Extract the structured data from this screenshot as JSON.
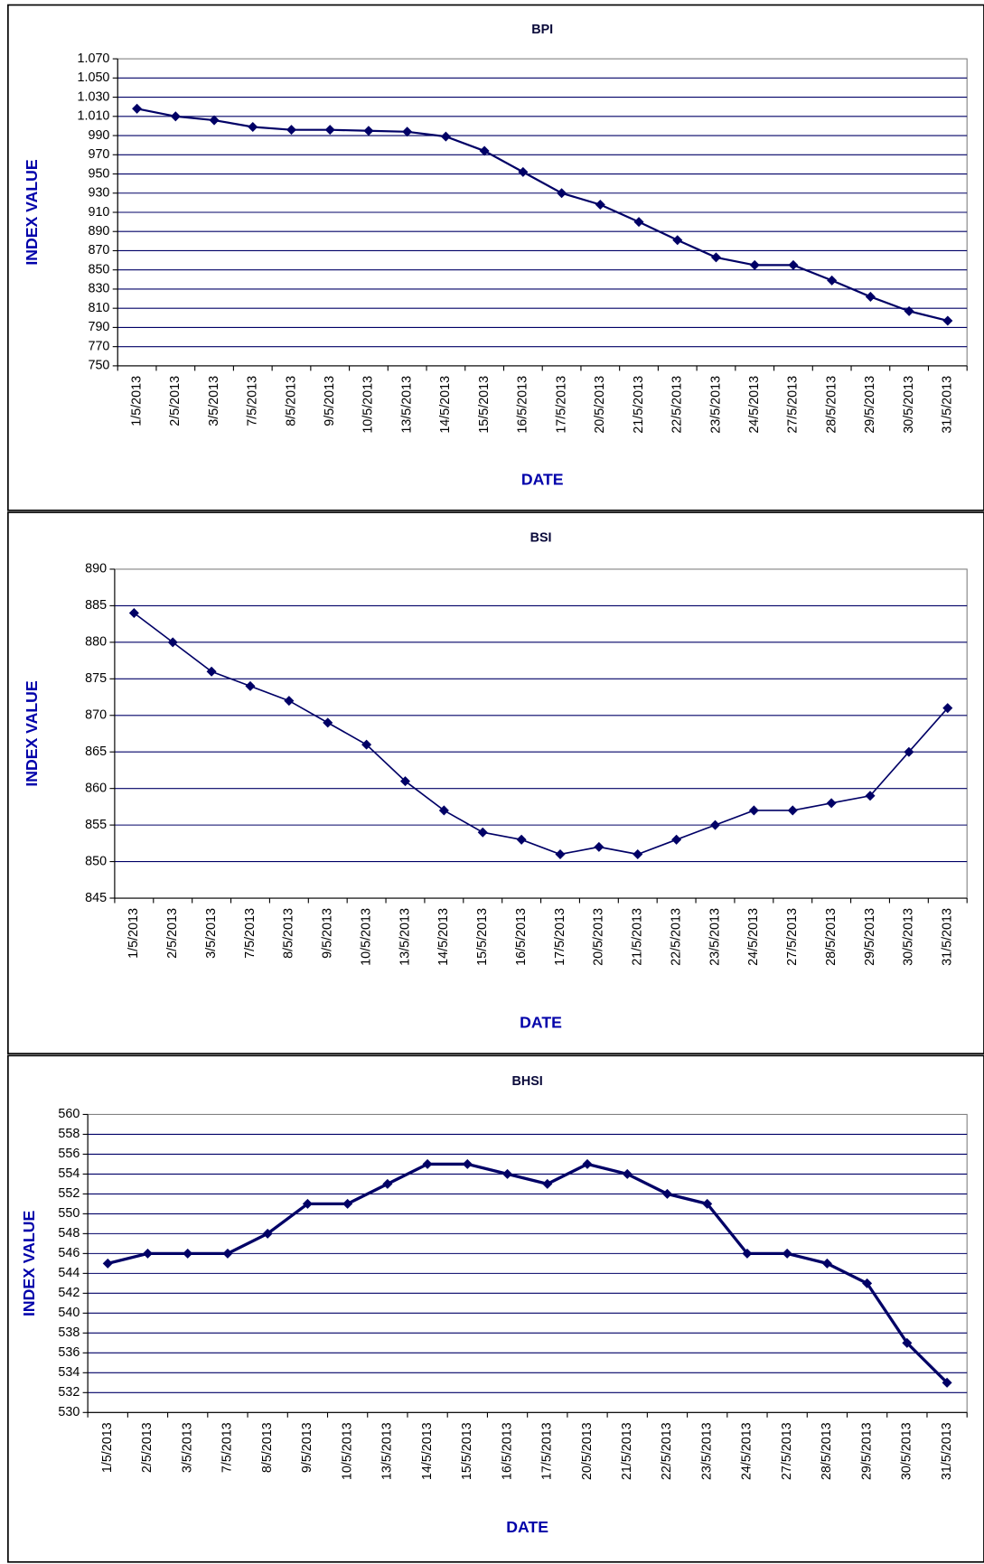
{
  "chart_data": [
    {
      "type": "line",
      "title": "BPI",
      "x_label": "DATE",
      "y_label": "INDEX VALUE",
      "categories": [
        "1/5/2013",
        "2/5/2013",
        "3/5/2013",
        "7/5/2013",
        "8/5/2013",
        "9/5/2013",
        "10/5/2013",
        "13/5/2013",
        "14/5/2013",
        "15/5/2013",
        "16/5/2013",
        "17/5/2013",
        "20/5/2013",
        "21/5/2013",
        "22/5/2013",
        "23/5/2013",
        "24/5/2013",
        "27/5/2013",
        "28/5/2013",
        "29/5/2013",
        "30/5/2013",
        "31/5/2013"
      ],
      "values": [
        1018,
        1010,
        1006,
        999,
        996,
        996,
        995,
        994,
        989,
        974,
        952,
        930,
        918,
        900,
        881,
        863,
        855,
        855,
        839,
        822,
        807,
        797
      ],
      "color": "#000066",
      "ylim": [
        750,
        1070
      ],
      "yticks": [
        750,
        770,
        790,
        810,
        830,
        850,
        870,
        890,
        910,
        930,
        950,
        970,
        990,
        {
          "value": 1010,
          "label": "1.010"
        },
        {
          "value": 1030,
          "label": "1.030"
        },
        {
          "value": 1050,
          "label": "1.050"
        },
        {
          "value": 1070,
          "label": "1.070"
        }
      ],
      "grid": true
    },
    {
      "type": "line",
      "title": "BSI",
      "x_label": "DATE",
      "y_label": "INDEX VALUE",
      "categories": [
        "1/5/2013",
        "2/5/2013",
        "3/5/2013",
        "7/5/2013",
        "8/5/2013",
        "9/5/2013",
        "10/5/2013",
        "13/5/2013",
        "14/5/2013",
        "15/5/2013",
        "16/5/2013",
        "17/5/2013",
        "20/5/2013",
        "21/5/2013",
        "22/5/2013",
        "23/5/2013",
        "24/5/2013",
        "27/5/2013",
        "28/5/2013",
        "29/5/2013",
        "30/5/2013",
        "31/5/2013"
      ],
      "values": [
        884,
        880,
        876,
        874,
        872,
        869,
        866,
        861,
        857,
        854,
        853,
        851,
        852,
        851,
        853,
        855,
        857,
        857,
        858,
        859,
        865,
        871
      ],
      "color": "#000066",
      "ylim": [
        845,
        890
      ],
      "yticks": [
        845,
        850,
        855,
        860,
        865,
        870,
        875,
        880,
        885,
        890
      ],
      "grid": true
    },
    {
      "type": "line",
      "title": "BHSI",
      "x_label": "DATE",
      "y_label": "INDEX VALUE",
      "categories": [
        "1/5/2013",
        "2/5/2013",
        "3/5/2013",
        "7/5/2013",
        "8/5/2013",
        "9/5/2013",
        "10/5/2013",
        "13/5/2013",
        "14/5/2013",
        "15/5/2013",
        "16/5/2013",
        "17/5/2013",
        "20/5/2013",
        "21/5/2013",
        "22/5/2013",
        "23/5/2013",
        "24/5/2013",
        "27/5/2013",
        "28/5/2013",
        "29/5/2013",
        "30/5/2013",
        "31/5/2013"
      ],
      "values": [
        545,
        546,
        546,
        546,
        548,
        551,
        551,
        553,
        555,
        555,
        554,
        553,
        555,
        554,
        552,
        551,
        546,
        546,
        545,
        543,
        537,
        533
      ],
      "color": "#000066",
      "ylim": [
        530,
        560
      ],
      "yticks": [
        530,
        532,
        534,
        536,
        538,
        540,
        542,
        544,
        546,
        548,
        550,
        552,
        554,
        556,
        558,
        560
      ],
      "grid": true
    }
  ]
}
